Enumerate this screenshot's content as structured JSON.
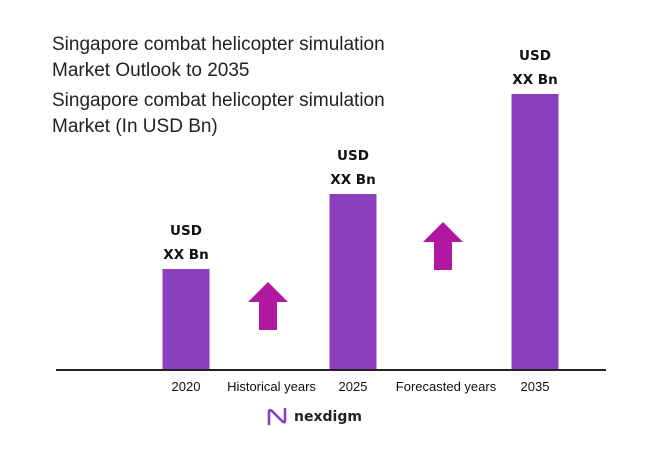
{
  "header": {
    "title_line1": "Singapore combat helicopter simulation",
    "title_line2": "Market Outlook to 2035",
    "subtitle_line1": "Singapore combat helicopter simulation",
    "subtitle_line2": "Market (In USD Bn)"
  },
  "chart_data": {
    "type": "bar",
    "title": "Singapore combat helicopter simulation Market Outlook to 2035",
    "subtitle": "Singapore combat helicopter simulation Market (In USD Bn)",
    "categories": [
      "2020",
      "2025",
      "2035"
    ],
    "values": [
      1.0,
      1.75,
      2.75
    ],
    "value_labels": [
      [
        "USD",
        "XX Bn"
      ],
      [
        "USD",
        "XX Bn"
      ],
      [
        "USD",
        "XX Bn"
      ]
    ],
    "bar_color": "#8b3fbf",
    "arrow_color": "#b0189f",
    "period_labels": [
      "Historical years",
      "Forecasted years"
    ],
    "trend": [
      "up",
      "up"
    ],
    "grid": false,
    "legend": "none"
  },
  "brand": {
    "name": "nexdigm"
  }
}
